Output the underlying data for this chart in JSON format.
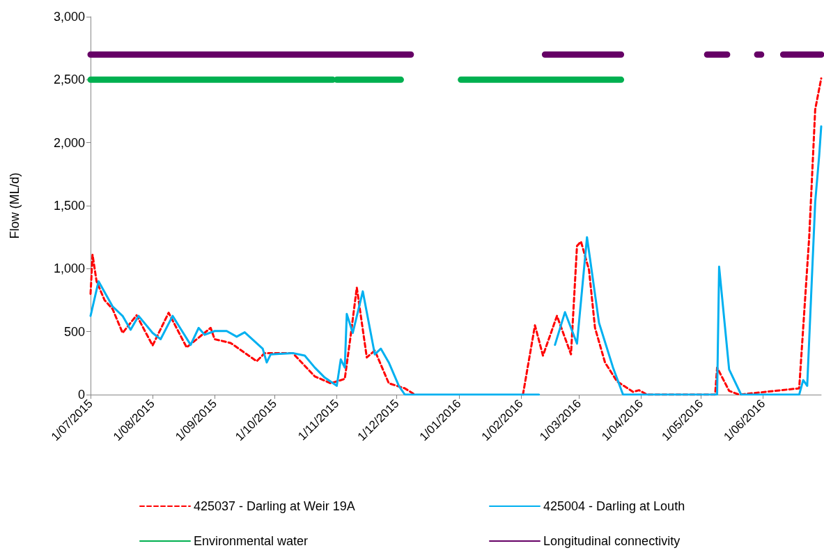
{
  "chart_data": {
    "type": "line",
    "ylabel": "Flow (ML/d)",
    "xlim": [
      "2015-07-01",
      "2016-06-30"
    ],
    "xticks": [
      {
        "value": "2015-07-01",
        "label": "1/07/2015"
      },
      {
        "value": "2015-08-01",
        "label": "1/08/2015"
      },
      {
        "value": "2015-09-01",
        "label": "1/09/2015"
      },
      {
        "value": "2015-10-01",
        "label": "1/10/2015"
      },
      {
        "value": "2015-11-01",
        "label": "1/11/2015"
      },
      {
        "value": "2015-12-01",
        "label": "1/12/2015"
      },
      {
        "value": "2016-01-01",
        "label": "1/01/2016"
      },
      {
        "value": "2016-02-01",
        "label": "1/02/2016"
      },
      {
        "value": "2016-03-01",
        "label": "1/03/2016"
      },
      {
        "value": "2016-04-01",
        "label": "1/04/2016"
      },
      {
        "value": "2016-05-01",
        "label": "1/05/2016"
      },
      {
        "value": "2016-06-01",
        "label": "1/06/2016"
      }
    ],
    "ylim": [
      0,
      3000
    ],
    "yticks": [
      0,
      500,
      {
        "value": 1000,
        "label": "1,000"
      },
      {
        "value": 1500,
        "label": "1,500"
      },
      {
        "value": 2000,
        "label": "2,000"
      },
      {
        "value": 2500,
        "label": "2,500"
      },
      {
        "value": 3000,
        "label": "3,000"
      }
    ],
    "grid": false,
    "legend": "bottom",
    "marker": "none",
    "series": [
      {
        "name": "425037 - Darling at Weir 19A",
        "color": "#ff0000",
        "line_style": "dashed",
        "x": [
          "2015-07-01",
          "2015-07-02",
          "2015-07-04",
          "2015-07-08",
          "2015-07-12",
          "2015-07-17",
          "2015-07-24",
          "2015-08-01",
          "2015-08-09",
          "2015-08-18",
          "2015-08-30",
          "2015-09-01",
          "2015-09-09",
          "2015-09-22",
          "2015-09-26",
          "2015-10-10",
          "2015-10-21",
          "2015-10-29",
          "2015-11-05",
          "2015-11-08",
          "2015-11-11",
          "2015-11-16",
          "2015-11-20",
          "2015-11-27",
          "2015-12-05",
          "2015-12-10",
          "2015-12-11",
          "2016-02-02",
          "2016-02-08",
          "2016-02-12",
          "2016-02-19",
          "2016-02-26",
          "2016-02-29",
          "2016-03-02",
          "2016-03-06",
          "2016-03-09",
          "2016-03-14",
          "2016-03-20",
          "2016-03-28",
          "2016-03-31",
          "2016-04-04",
          "2016-05-08",
          "2016-05-09",
          "2016-05-15",
          "2016-05-20",
          "2016-06-19",
          "2016-06-24",
          "2016-06-27",
          "2016-06-30"
        ],
        "values": [
          800,
          1110,
          900,
          750,
          680,
          490,
          630,
          390,
          650,
          375,
          530,
          440,
          410,
          265,
          330,
          330,
          145,
          90,
          125,
          475,
          850,
          295,
          350,
          90,
          50,
          0,
          null,
          0,
          550,
          310,
          625,
          320,
          1180,
          1215,
          990,
          530,
          255,
          105,
          22,
          35,
          0,
          0,
          215,
          30,
          0,
          50,
          1250,
          2265,
          2510
        ]
      },
      {
        "name": "425004 - Darling at Louth",
        "color": "#00b0f0",
        "line_style": "solid",
        "x": [
          "2015-07-01",
          "2015-07-05",
          "2015-07-12",
          "2015-07-17",
          "2015-07-21",
          "2015-07-25",
          "2015-08-01",
          "2015-08-05",
          "2015-08-11",
          "2015-08-20",
          "2015-08-24",
          "2015-08-27",
          "2015-09-01",
          "2015-09-07",
          "2015-09-12",
          "2015-09-16",
          "2015-09-25",
          "2015-09-27",
          "2015-09-29",
          "2015-10-10",
          "2015-10-16",
          "2015-10-21",
          "2015-10-26",
          "2015-11-01",
          "2015-11-03",
          "2015-11-05",
          "2015-11-06",
          "2015-11-09",
          "2015-11-14",
          "2015-11-20",
          "2015-11-23",
          "2015-11-27",
          "2015-12-02",
          "2015-12-05",
          "2016-02-10",
          "2016-02-11",
          "2016-02-18",
          "2016-02-23",
          "2016-02-29",
          "2016-03-05",
          "2016-03-11",
          "2016-03-18",
          "2016-03-23",
          "2016-05-09",
          "2016-05-10",
          "2016-05-15",
          "2016-05-21",
          "2016-06-19",
          "2016-06-21",
          "2016-06-23",
          "2016-06-27",
          "2016-06-29",
          "2016-06-30"
        ],
        "values": [
          625,
          900,
          700,
          625,
          515,
          625,
          490,
          440,
          625,
          395,
          530,
          475,
          505,
          505,
          460,
          495,
          365,
          255,
          320,
          330,
          310,
          215,
          135,
          70,
          280,
          215,
          640,
          490,
          820,
          320,
          365,
          255,
          70,
          0,
          0,
          null,
          395,
          655,
          405,
          1250,
          570,
          215,
          0,
          0,
          1015,
          200,
          0,
          0,
          115,
          70,
          1530,
          1900,
          2130
        ]
      },
      {
        "name": "Environmental water",
        "color": "#00b050",
        "line_style": "solid",
        "x": [
          "2015-07-01",
          "2015-10-30",
          "2015-10-31",
          "2015-11-01",
          "2015-12-03",
          "2015-12-15",
          "2016-01-02",
          "2016-03-22"
        ],
        "values": [
          2500,
          2500,
          null,
          2500,
          2500,
          null,
          2500,
          2500
        ]
      },
      {
        "name": "Longitudinal connectivity",
        "color": "#660066",
        "line_style": "solid",
        "x": [
          "2015-07-01",
          "2015-12-08",
          "2015-12-20",
          "2016-02-13",
          "2016-03-22",
          "2016-04-10",
          "2016-05-04",
          "2016-05-14",
          "2016-05-20",
          "2016-05-29",
          "2016-05-31",
          "2016-06-05",
          "2016-06-11",
          "2016-06-30"
        ],
        "values": [
          2700,
          2700,
          null,
          2700,
          2700,
          null,
          2700,
          2700,
          null,
          2700,
          2700,
          null,
          2700,
          2700
        ]
      }
    ]
  }
}
